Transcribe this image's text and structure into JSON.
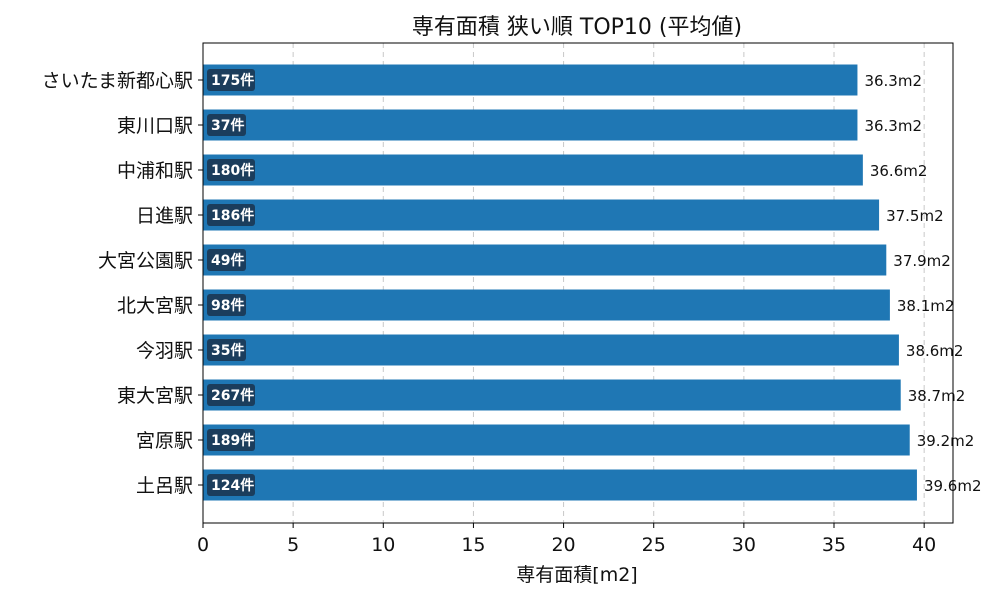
{
  "chart_data": {
    "type": "bar",
    "orientation": "horizontal",
    "title": "専有面積 狭い順 TOP10 (平均値)",
    "xlabel": "専有面積[m2]",
    "ylabel": "",
    "xlim": [
      0,
      41.6
    ],
    "xticks": [
      0,
      5,
      10,
      15,
      20,
      25,
      30,
      35,
      40
    ],
    "grid": "x-dashed",
    "bar_color": "#1f77b4",
    "badge_color": "#1b3d5c",
    "categories": [
      "さいたま新都心駅",
      "東川口駅",
      "中浦和駅",
      "日進駅",
      "大宮公園駅",
      "北大宮駅",
      "今羽駅",
      "東大宮駅",
      "宮原駅",
      "土呂駅"
    ],
    "values": [
      36.3,
      36.3,
      36.6,
      37.5,
      37.9,
      38.1,
      38.6,
      38.7,
      39.2,
      39.6
    ],
    "value_labels": [
      "36.3m2",
      "36.3m2",
      "36.6m2",
      "37.5m2",
      "37.9m2",
      "38.1m2",
      "38.6m2",
      "38.7m2",
      "39.2m2",
      "39.6m2"
    ],
    "counts": [
      "175件",
      "37件",
      "180件",
      "186件",
      "49件",
      "98件",
      "35件",
      "267件",
      "189件",
      "124件"
    ]
  }
}
